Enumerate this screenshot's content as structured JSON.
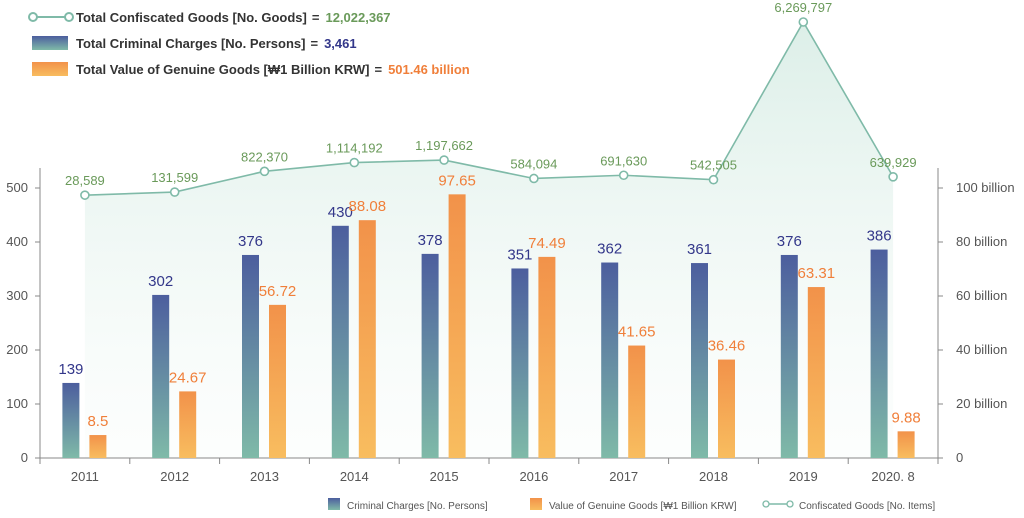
{
  "summary": {
    "confiscated": {
      "label": "Total Confiscated Goods [No. Goods]",
      "eq": "=",
      "value": "12,022,367",
      "color": "#6a9a5a"
    },
    "charges": {
      "label": "Total Criminal Charges [No. Persons]",
      "eq": "=",
      "value": "3,461",
      "color": "#33378a"
    },
    "genuine": {
      "label": "Total Value of Genuine Goods [₩1 Billion KRW]",
      "eq": "=",
      "value": "501.46 billion",
      "color": "#f07f3a"
    }
  },
  "chart_data": {
    "type": "bar",
    "categories": [
      "2011",
      "2012",
      "2013",
      "2014",
      "2015",
      "2016",
      "2017",
      "2018",
      "2019",
      "2020. 8"
    ],
    "series": [
      {
        "name": "Criminal Charges [No. Persons]",
        "type": "bar",
        "axis": "left",
        "values": [
          139,
          302,
          376,
          430,
          378,
          351,
          362,
          361,
          376,
          386
        ],
        "labels": [
          "139",
          "302",
          "376",
          "430",
          "378",
          "351",
          "362",
          "361",
          "376",
          "386"
        ]
      },
      {
        "name": "Value of Genuine Goods [₩1 Billion KRW]",
        "type": "bar",
        "axis": "right",
        "values": [
          8.5,
          24.67,
          56.72,
          88.08,
          97.65,
          74.49,
          41.65,
          36.46,
          63.31,
          9.88
        ],
        "labels": [
          "8.5",
          "24.67",
          "56.72",
          "88.08",
          "97.65",
          "74.49",
          "41.65",
          "36.46",
          "63.31",
          "9.88"
        ]
      },
      {
        "name": "Confiscated Goods [No. Items]",
        "type": "line",
        "axis": "none",
        "values": [
          28589,
          131599,
          822370,
          1114192,
          1197662,
          584094,
          691630,
          542505,
          6269797,
          639929
        ],
        "labels": [
          "28,589",
          "131,599",
          "822,370",
          "1,114,192",
          "1,197,662",
          "584,094",
          "691,630",
          "542,505",
          "6,269,797",
          "639,929"
        ]
      }
    ],
    "yleft": {
      "min": 0,
      "max": 500,
      "ticks": [
        "0",
        "100",
        "200",
        "300",
        "400",
        "500"
      ]
    },
    "yright": {
      "min": 0,
      "max": 100,
      "ticks": [
        "0",
        "20 billion",
        "40 billion",
        "60 billion",
        "80 billion",
        "100 billion"
      ]
    },
    "legend_position": "bottom-right",
    "colors": {
      "charges": "#4c5e9e",
      "charges_bottom": "#7fbaa8",
      "genuine": "#f2924a",
      "genuine_bottom": "#f8bd5f",
      "line": "#7fbaa8",
      "line_label": "#6a9a5a",
      "charges_label": "#33378a",
      "genuine_label": "#f07f3a",
      "axis": "#888888",
      "tick": "#555555"
    }
  }
}
